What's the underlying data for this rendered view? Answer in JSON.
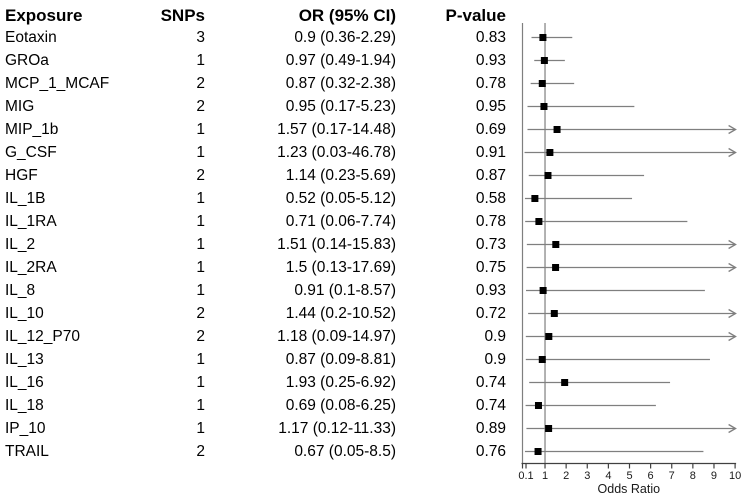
{
  "figure": {
    "background": "#ffffff"
  },
  "table": {
    "headers": {
      "exposure": "Exposure",
      "snps": "SNPs",
      "or_ci": "OR (95% CI)",
      "p_value": "P-value"
    },
    "rows": [
      {
        "exposure": "Eotaxin",
        "snps": "3",
        "or_ci": "0.9 (0.36-2.29)",
        "p": "0.83"
      },
      {
        "exposure": "GROa",
        "snps": "1",
        "or_ci": "0.97 (0.49-1.94)",
        "p": "0.93"
      },
      {
        "exposure": "MCP_1_MCAF",
        "snps": "2",
        "or_ci": "0.87 (0.32-2.38)",
        "p": "0.78"
      },
      {
        "exposure": "MIG",
        "snps": "2",
        "or_ci": "0.95 (0.17-5.23)",
        "p": "0.95"
      },
      {
        "exposure": "MIP_1b",
        "snps": "1",
        "or_ci": "1.57 (0.17-14.48)",
        "p": "0.69"
      },
      {
        "exposure": "G_CSF",
        "snps": "1",
        "or_ci": "1.23 (0.03-46.78)",
        "p": "0.91"
      },
      {
        "exposure": "HGF",
        "snps": "2",
        "or_ci": "1.14 (0.23-5.69)",
        "p": "0.87"
      },
      {
        "exposure": "IL_1B",
        "snps": "1",
        "or_ci": "0.52 (0.05-5.12)",
        "p": "0.58"
      },
      {
        "exposure": "IL_1RA",
        "snps": "1",
        "or_ci": "0.71 (0.06-7.74)",
        "p": "0.78"
      },
      {
        "exposure": "IL_2",
        "snps": "1",
        "or_ci": "1.51 (0.14-15.83)",
        "p": "0.73"
      },
      {
        "exposure": "IL_2RA",
        "snps": "1",
        "or_ci": "1.5 (0.13-17.69)",
        "p": "0.75"
      },
      {
        "exposure": "IL_8",
        "snps": "1",
        "or_ci": "0.91 (0.1-8.57)",
        "p": "0.93"
      },
      {
        "exposure": "IL_10",
        "snps": "2",
        "or_ci": "1.44 (0.2-10.52)",
        "p": "0.72"
      },
      {
        "exposure": "IL_12_P70",
        "snps": "2",
        "or_ci": "1.18 (0.09-14.97)",
        "p": "0.9"
      },
      {
        "exposure": "IL_13",
        "snps": "1",
        "or_ci": "0.87 (0.09-8.81)",
        "p": "0.9"
      },
      {
        "exposure": "IL_16",
        "snps": "1",
        "or_ci": "1.93 (0.25-6.92)",
        "p": "0.74"
      },
      {
        "exposure": "IL_18",
        "snps": "1",
        "or_ci": "0.69 (0.08-6.25)",
        "p": "0.74"
      },
      {
        "exposure": "IP_10",
        "snps": "1",
        "or_ci": "1.17 (0.12-11.33)",
        "p": "0.89"
      },
      {
        "exposure": "TRAIL",
        "snps": "2",
        "or_ci": "0.67 (0.05-8.5)",
        "p": "0.76"
      }
    ]
  },
  "chart_data": {
    "type": "scatter",
    "variant": "forest-plot",
    "title": "",
    "xlabel": "Odds Ratio",
    "xlim": [
      0,
      10
    ],
    "xticks": [
      0.1,
      1,
      2,
      3,
      4,
      5,
      6,
      7,
      8,
      9,
      10
    ],
    "xtick_labels": [
      "0.1",
      "1",
      "2",
      "3",
      "4",
      "5",
      "6",
      "7",
      "8",
      "9",
      "10"
    ],
    "reference_line": 1,
    "clip_max": 10,
    "grid": false,
    "legend": "none",
    "colors": {
      "marker": "#000000",
      "ci_line": "#7f7f7f",
      "reference_line": "#7f7f7f",
      "axis": "#404040",
      "text": "#1a1a1a"
    },
    "points": [
      {
        "label": "Eotaxin",
        "snps": 3,
        "or": 0.9,
        "ci_low": 0.36,
        "ci_high": 2.29,
        "p_value": 0.83
      },
      {
        "label": "GROa",
        "snps": 1,
        "or": 0.97,
        "ci_low": 0.49,
        "ci_high": 1.94,
        "p_value": 0.93
      },
      {
        "label": "MCP_1_MCAF",
        "snps": 2,
        "or": 0.87,
        "ci_low": 0.32,
        "ci_high": 2.38,
        "p_value": 0.78
      },
      {
        "label": "MIG",
        "snps": 2,
        "or": 0.95,
        "ci_low": 0.17,
        "ci_high": 5.23,
        "p_value": 0.95
      },
      {
        "label": "MIP_1b",
        "snps": 1,
        "or": 1.57,
        "ci_low": 0.17,
        "ci_high": 14.48,
        "p_value": 0.69
      },
      {
        "label": "G_CSF",
        "snps": 1,
        "or": 1.23,
        "ci_low": 0.03,
        "ci_high": 46.78,
        "p_value": 0.91
      },
      {
        "label": "HGF",
        "snps": 2,
        "or": 1.14,
        "ci_low": 0.23,
        "ci_high": 5.69,
        "p_value": 0.87
      },
      {
        "label": "IL_1B",
        "snps": 1,
        "or": 0.52,
        "ci_low": 0.05,
        "ci_high": 5.12,
        "p_value": 0.58
      },
      {
        "label": "IL_1RA",
        "snps": 1,
        "or": 0.71,
        "ci_low": 0.06,
        "ci_high": 7.74,
        "p_value": 0.78
      },
      {
        "label": "IL_2",
        "snps": 1,
        "or": 1.51,
        "ci_low": 0.14,
        "ci_high": 15.83,
        "p_value": 0.73
      },
      {
        "label": "IL_2RA",
        "snps": 1,
        "or": 1.5,
        "ci_low": 0.13,
        "ci_high": 17.69,
        "p_value": 0.75
      },
      {
        "label": "IL_8",
        "snps": 1,
        "or": 0.91,
        "ci_low": 0.1,
        "ci_high": 8.57,
        "p_value": 0.93
      },
      {
        "label": "IL_10",
        "snps": 2,
        "or": 1.44,
        "ci_low": 0.2,
        "ci_high": 10.52,
        "p_value": 0.72
      },
      {
        "label": "IL_12_P70",
        "snps": 2,
        "or": 1.18,
        "ci_low": 0.09,
        "ci_high": 14.97,
        "p_value": 0.9
      },
      {
        "label": "IL_13",
        "snps": 1,
        "or": 0.87,
        "ci_low": 0.09,
        "ci_high": 8.81,
        "p_value": 0.9
      },
      {
        "label": "IL_16",
        "snps": 1,
        "or": 1.93,
        "ci_low": 0.25,
        "ci_high": 6.92,
        "p_value": 0.74
      },
      {
        "label": "IL_18",
        "snps": 1,
        "or": 0.69,
        "ci_low": 0.08,
        "ci_high": 6.25,
        "p_value": 0.74
      },
      {
        "label": "IP_10",
        "snps": 1,
        "or": 1.17,
        "ci_low": 0.12,
        "ci_high": 11.33,
        "p_value": 0.89
      },
      {
        "label": "TRAIL",
        "snps": 2,
        "or": 0.67,
        "ci_low": 0.05,
        "ci_high": 8.5,
        "p_value": 0.76
      }
    ]
  }
}
